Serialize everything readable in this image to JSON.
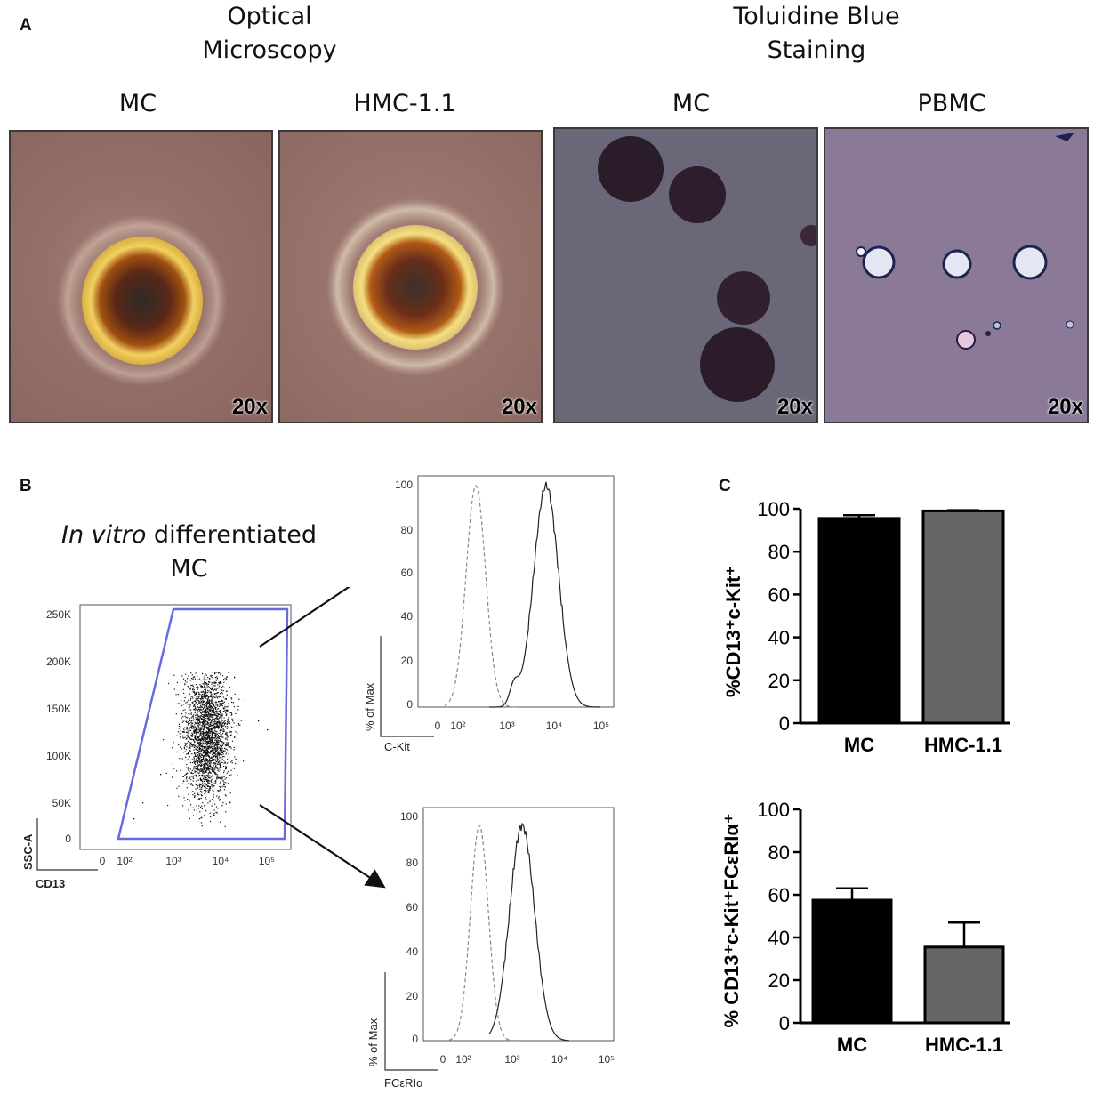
{
  "panelA": {
    "letter": "A",
    "group1": {
      "line1": "Optical",
      "line2": "Microscopy"
    },
    "group2": {
      "line1": "Toluidine Blue",
      "line2": "Staining"
    },
    "images": [
      {
        "label": "MC",
        "magnification": "20x"
      },
      {
        "label": "HMC-1.1",
        "magnification": "20x"
      },
      {
        "label": "MC",
        "magnification": "20x"
      },
      {
        "label": "PBMC",
        "magnification": "20x"
      }
    ]
  },
  "panelB": {
    "letter": "B",
    "title_italic": "In vitro",
    "title_rest": " differentiated",
    "title_line2": "MC",
    "scatter": {
      "ylabel": "SSC-A",
      "xlabel": "CD13",
      "yticks": [
        "250K",
        "200K",
        "150K",
        "100K",
        "50K",
        "0"
      ],
      "xticks": [
        "0",
        "10²",
        "10³",
        "10⁴",
        "10⁵"
      ]
    },
    "hist1": {
      "ylabel": "% of Max",
      "xlabel": "C-Kit",
      "yticks": [
        "100",
        "80",
        "60",
        "40",
        "20",
        "0"
      ],
      "xticks": [
        "0",
        "10²",
        "10³",
        "10⁴",
        "10⁵"
      ]
    },
    "hist2": {
      "ylabel": "% of Max",
      "xlabel": "FCεRIα",
      "yticks": [
        "100",
        "80",
        "60",
        "40",
        "20",
        "0"
      ],
      "xticks": [
        "0",
        "10²",
        "10³",
        "10⁴",
        "10⁵"
      ]
    }
  },
  "panelC": {
    "letter": "C"
  },
  "chart_data": [
    {
      "type": "bar",
      "categories": [
        "MC",
        "HMC-1.1"
      ],
      "values": [
        95.5,
        99.0
      ],
      "errors": [
        1.5,
        0.3
      ],
      "colors": [
        "#000000",
        "#666666"
      ],
      "ylabel": "%CD13⁺c-Kit⁺",
      "ylim": [
        0,
        100
      ],
      "yticks": [
        "0",
        "20",
        "40",
        "60",
        "80",
        "100"
      ]
    },
    {
      "type": "bar",
      "categories": [
        "MC",
        "HMC-1.1"
      ],
      "values": [
        57.5,
        35.5
      ],
      "errors": [
        5.5,
        11.5
      ],
      "colors": [
        "#000000",
        "#666666"
      ],
      "ylabel": "% CD13⁺c-Kit⁺FCεRIα⁺",
      "ylim": [
        0,
        100
      ],
      "yticks": [
        "0",
        "20",
        "40",
        "60",
        "80",
        "100"
      ]
    }
  ]
}
